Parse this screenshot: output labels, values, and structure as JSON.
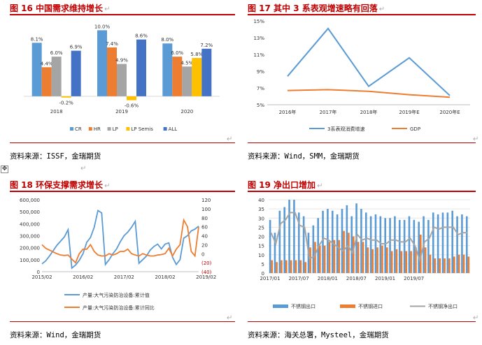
{
  "fig16": {
    "title": "图 16 中国需求维持增长",
    "source": "资料来源：ISSF，金瑞期货",
    "chart_data": {
      "type": "bar",
      "categories": [
        "2018",
        "2019",
        "2020"
      ],
      "series": [
        {
          "name": "CR",
          "color": "#5b9bd5",
          "values": [
            8.1,
            10.0,
            8.0
          ],
          "labels": [
            "8.1%",
            "10.0%",
            "8.0%"
          ]
        },
        {
          "name": "HR",
          "color": "#ed7d31",
          "values": [
            4.4,
            7.4,
            6.0
          ],
          "labels": [
            "4.4%",
            "7.4%",
            "6.0%"
          ]
        },
        {
          "name": "LP",
          "color": "#a5a5a5",
          "values": [
            6.0,
            4.9,
            4.5
          ],
          "labels": [
            "6.0%",
            "4.9%",
            "4.5%"
          ]
        },
        {
          "name": "LP Semis",
          "color": "#ffc000",
          "values": [
            -0.2,
            -0.6,
            5.8
          ],
          "labels": [
            "-0.2%",
            "-0.6%",
            "5.8%"
          ]
        },
        {
          "name": "ALL",
          "color": "#4472c4",
          "values": [
            6.9,
            8.6,
            7.2
          ],
          "labels": [
            "6.9%",
            "8.6%",
            "7.2%"
          ]
        }
      ],
      "ylim": [
        -1.5,
        11.2
      ],
      "legend": "bottom"
    }
  },
  "fig17": {
    "title": "图 17 其中 3 系表观增速略有回落",
    "source": "资料来源：Wind，SMM，金瑞期货",
    "chart_data": {
      "type": "line",
      "x": [
        "2016年",
        "2017年",
        "2018年",
        "2019年E",
        "2020年E"
      ],
      "series": [
        {
          "name": "3系表观消费增速",
          "color": "#5b9bd5",
          "values": [
            8.4,
            14.1,
            7.2,
            10.6,
            6.1
          ]
        },
        {
          "name": "GDP",
          "color": "#ed7d31",
          "values": [
            6.7,
            6.8,
            6.6,
            6.2,
            5.9
          ]
        }
      ],
      "yticks": [
        "5%",
        "7%",
        "9%",
        "11%",
        "13%",
        "15%"
      ],
      "ylim": [
        5,
        15
      ],
      "legend": "bottom"
    }
  },
  "fig18": {
    "title": "图 18 环保支撑需求增长",
    "source": "资料来源：Wind，金瑞期货",
    "chart_data": {
      "type": "line",
      "x_ticks": [
        "2015/02",
        "2016/02",
        "2017/02",
        "2018/02",
        "2019/02"
      ],
      "left_ticks": [
        "0",
        "100,000",
        "200,000",
        "300,000",
        "400,000",
        "500,000",
        "600,000"
      ],
      "right_ticks": [
        "(40)",
        "(20)",
        "0",
        "20",
        "40",
        "60",
        "80",
        "100",
        "120"
      ],
      "left_ylim": [
        0,
        600000
      ],
      "right_ylim": [
        -40,
        120
      ],
      "series": [
        {
          "name": "产量:大气污染防治设备:累计值",
          "color": "#5b9bd5",
          "axis": "left",
          "values": [
            65000,
            90000,
            130000,
            175000,
            220000,
            255000,
            290000,
            350000,
            30000,
            55000,
            95000,
            150000,
            245000,
            285000,
            370000,
            510000,
            490000,
            60000,
            100000,
            150000,
            190000,
            250000,
            300000,
            330000,
            370000,
            420000,
            70000,
            100000,
            130000,
            180000,
            210000,
            230000,
            190000,
            230000,
            240000,
            120000,
            60000,
            100000,
            280000,
            300000,
            340000,
            355000,
            380000
          ]
        },
        {
          "name": "产量:大气污染防治设备:累计同比",
          "color": "#ed7d31",
          "axis": "right",
          "values": [
            20,
            12,
            8,
            4,
            0,
            -3,
            -4,
            -3,
            -12,
            -20,
            0,
            10,
            10,
            20,
            5,
            -3,
            -5,
            -5,
            0,
            -3,
            0,
            5,
            5,
            10,
            0,
            -3,
            -5,
            0,
            -3,
            -5,
            -5,
            -3,
            -2,
            0,
            12,
            -5,
            10,
            20,
            75,
            60,
            5,
            -5,
            60
          ]
        }
      ],
      "legend": "bottom"
    }
  },
  "fig19": {
    "title": "图 19 净出口增加",
    "source": "资料来源：海关总署，Mysteel，金瑞期货",
    "chart_data": {
      "type": "bar",
      "x_ticks": [
        "2017/01",
        "2017/07",
        "2018/01",
        "2018/07",
        "2019/01",
        "2019/07"
      ],
      "yticks": [
        "0",
        "5",
        "10",
        "15",
        "20",
        "25",
        "30",
        "35",
        "40"
      ],
      "ylim": [
        0,
        40
      ],
      "series": [
        {
          "name": "不锈钢出口",
          "color": "#5b9bd5",
          "values": [
            29,
            22,
            34,
            36,
            40,
            40,
            33,
            31,
            22,
            26,
            30,
            34,
            35,
            34,
            32,
            35,
            37,
            31,
            38,
            35,
            33,
            31,
            32,
            31,
            30,
            30,
            31,
            29,
            29,
            31,
            29,
            28,
            31,
            29,
            33,
            32,
            33,
            33,
            34,
            31,
            32,
            31
          ]
        },
        {
          "name": "不锈钢进口",
          "color": "#ed7d31",
          "values": [
            7,
            6,
            7,
            7,
            7,
            7,
            7,
            6,
            14,
            17,
            15,
            15,
            17,
            18,
            18,
            23,
            22,
            20,
            17,
            17,
            14,
            13,
            14,
            15,
            14,
            12,
            13,
            12,
            12,
            12,
            14,
            21,
            14,
            10,
            8,
            8,
            8,
            8,
            9,
            10,
            10,
            9
          ]
        },
        {
          "name": "不锈钢净出口",
          "color": "#a5a5a5",
          "values": [
            22,
            16,
            27,
            29,
            33,
            33,
            26,
            25,
            8,
            9,
            15,
            19,
            18,
            16,
            14,
            12,
            15,
            11,
            21,
            18,
            19,
            18,
            18,
            16,
            16,
            18,
            18,
            17,
            17,
            19,
            15,
            7,
            17,
            19,
            25,
            24,
            25,
            25,
            25,
            21,
            22,
            22
          ]
        }
      ],
      "legend": "bottom"
    }
  }
}
